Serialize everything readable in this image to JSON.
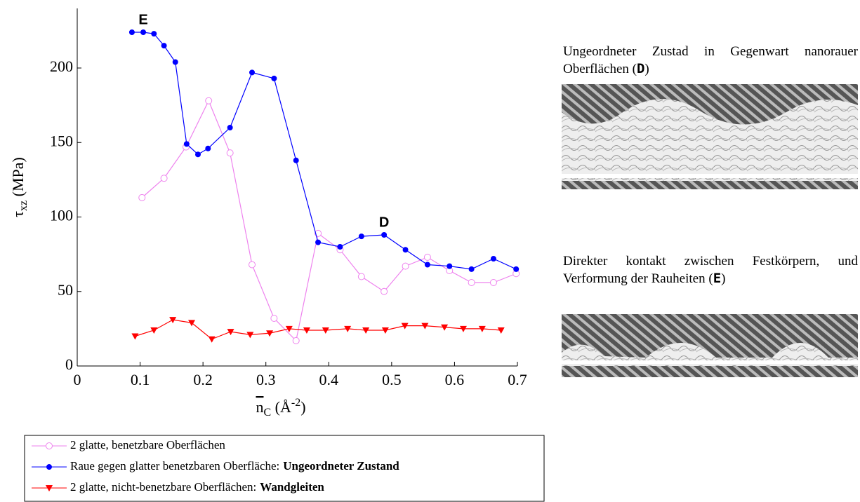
{
  "chart_data": {
    "type": "line",
    "ylabel": [
      "τ",
      "xz",
      " (MPa)"
    ],
    "xlabel": [
      "n",
      "C",
      " (Å",
      "-2",
      ")"
    ],
    "xlim": [
      0,
      0.7
    ],
    "xticks": [
      0,
      0.1,
      0.2,
      0.3,
      0.4,
      0.5,
      0.6,
      0.7
    ],
    "ylim": [
      0,
      240
    ],
    "yticks": [
      0,
      50,
      100,
      150,
      200
    ],
    "legend": "bottom",
    "series": [
      {
        "name": "2 glatte, benetzbare Oberflächen",
        "color": "#ee82ee",
        "marker": "open-circle",
        "x": [
          0.103,
          0.138,
          0.173,
          0.209,
          0.243,
          0.278,
          0.313,
          0.348,
          0.383,
          0.418,
          0.452,
          0.488,
          0.522,
          0.557,
          0.592,
          0.627,
          0.662,
          0.698
        ],
        "values": [
          113,
          126,
          147,
          178,
          143,
          68,
          32,
          17,
          89,
          78,
          60,
          50,
          67,
          73,
          64,
          56,
          56,
          62
        ]
      },
      {
        "name": "Raue gegen glatter benetzbaren Oberfläche:",
        "name_bold": "Ungeordneter Zustand",
        "color": "#0000ff",
        "marker": "circle",
        "x": [
          0.087,
          0.105,
          0.122,
          0.138,
          0.156,
          0.174,
          0.192,
          0.208,
          0.243,
          0.278,
          0.313,
          0.348,
          0.383,
          0.418,
          0.452,
          0.488,
          0.522,
          0.557,
          0.592,
          0.627,
          0.662,
          0.698
        ],
        "values": [
          224,
          224,
          223,
          215,
          204,
          149,
          142,
          146,
          160,
          197,
          193,
          138,
          83,
          80,
          87,
          88,
          78,
          68,
          67,
          65,
          72,
          65
        ]
      },
      {
        "name": "2 glatte, nicht-benetzbare Oberflächen:",
        "name_bold": "Wandgleiten",
        "color": "#ff0000",
        "marker": "triangle-down",
        "x": [
          0.092,
          0.122,
          0.152,
          0.182,
          0.214,
          0.244,
          0.275,
          0.306,
          0.337,
          0.365,
          0.395,
          0.43,
          0.459,
          0.49,
          0.521,
          0.553,
          0.584,
          0.614,
          0.644,
          0.674
        ],
        "values": [
          20,
          24,
          31,
          29,
          18,
          23,
          21,
          22,
          25,
          24,
          24,
          25,
          24,
          24,
          27,
          27,
          26,
          25,
          25,
          24
        ]
      }
    ],
    "annotations": [
      {
        "text": "E",
        "x": 0.105,
        "y": 232
      },
      {
        "text": "D",
        "x": 0.488,
        "y": 96
      }
    ]
  },
  "panels": [
    {
      "caption": [
        "Ungeordneter Zustad in Gegenwart nanorauer Oberflächen (",
        "D",
        ")"
      ]
    },
    {
      "caption": [
        "Direkter kontakt zwischen Festkörpern, und Verformung der Rauheiten (",
        "E",
        ")"
      ]
    }
  ]
}
